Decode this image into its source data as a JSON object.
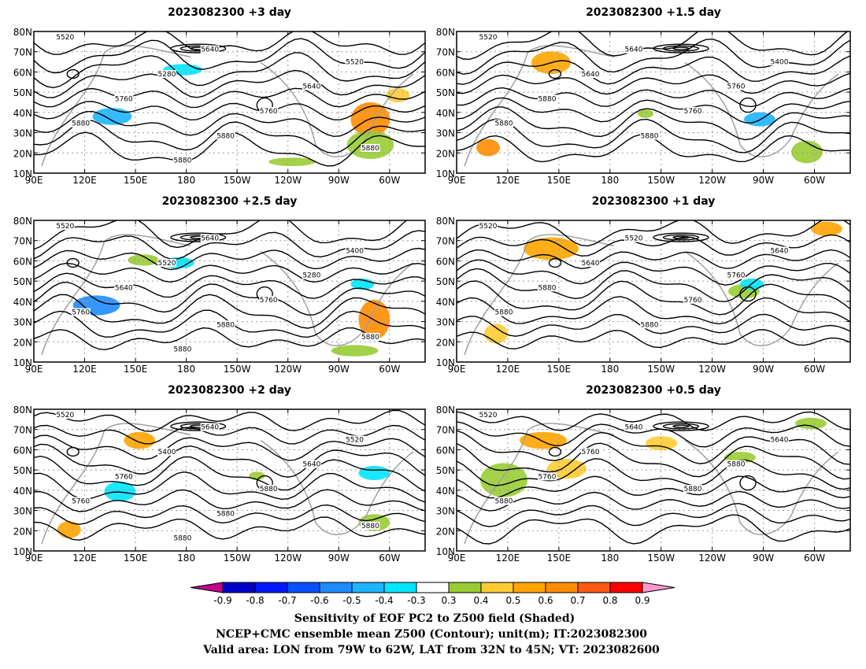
{
  "panels": [
    {
      "title": "2023082300 +3 day"
    },
    {
      "title": "2023082300 +1.5 day"
    },
    {
      "title": "2023082300 +2.5 day"
    },
    {
      "title": "2023082300 +1 day"
    },
    {
      "title": "2023082300 +2 day"
    },
    {
      "title": "2023082300 +0.5 day"
    }
  ],
  "axes": {
    "lat_labels": [
      "80N",
      "70N",
      "60N",
      "50N",
      "40N",
      "30N",
      "20N",
      "10N"
    ],
    "lon_labels": [
      "90E",
      "120E",
      "150E",
      "180",
      "150W",
      "120W",
      "90W",
      "60W"
    ]
  },
  "contour_labels": {
    "p0": [
      "5520",
      "5640",
      "5520",
      "5280",
      "5640",
      "5760",
      "5760",
      "5880",
      "5880",
      "5880",
      "5880"
    ],
    "p1": [
      "5520",
      "5640",
      "5400",
      "5640",
      "5760",
      "5880",
      "5760",
      "5880",
      "5880"
    ],
    "p2": [
      "5520",
      "5640",
      "5400",
      "5520",
      "5280",
      "5640",
      "5760",
      "5760",
      "5880",
      "5880",
      "5880"
    ],
    "p3": [
      "5520",
      "5520",
      "5640",
      "5640",
      "5760",
      "5880",
      "5760",
      "5880",
      "5880"
    ],
    "p4": [
      "5520",
      "5640",
      "5520",
      "5400",
      "5640",
      "5760",
      "5880",
      "5760",
      "5880",
      "5880",
      "5880"
    ],
    "p5": [
      "5520",
      "5640",
      "5640",
      "5760",
      "5880",
      "5760",
      "5880",
      "5880"
    ]
  },
  "colorbar": {
    "colors": [
      "#c0008c",
      "#0000c8",
      "#0019ff",
      "#0a50ff",
      "#1e8cff",
      "#1eb4ff",
      "#00e6ff",
      "#ffffff",
      "#99cc33",
      "#ffcc33",
      "#ffa500",
      "#ff8c00",
      "#ff5a14",
      "#ff0000",
      "#ff99cc"
    ],
    "labels": [
      "-0.9",
      "-0.8",
      "-0.7",
      "-0.6",
      "-0.5",
      "-0.4",
      "-0.3",
      "0.3",
      "0.4",
      "0.5",
      "0.6",
      "0.7",
      "0.8",
      "0.9"
    ]
  },
  "footer": {
    "line1": "Sensitivity of EOF PC2 to Z500 field (Shaded)",
    "line2": "NCEP+CMC ensemble mean Z500 (Contour); unit(m); IT:2023082300",
    "line3": "Valid area: LON from 79W to 62W, LAT from 32N to 45N; VT: 2023082600"
  }
}
